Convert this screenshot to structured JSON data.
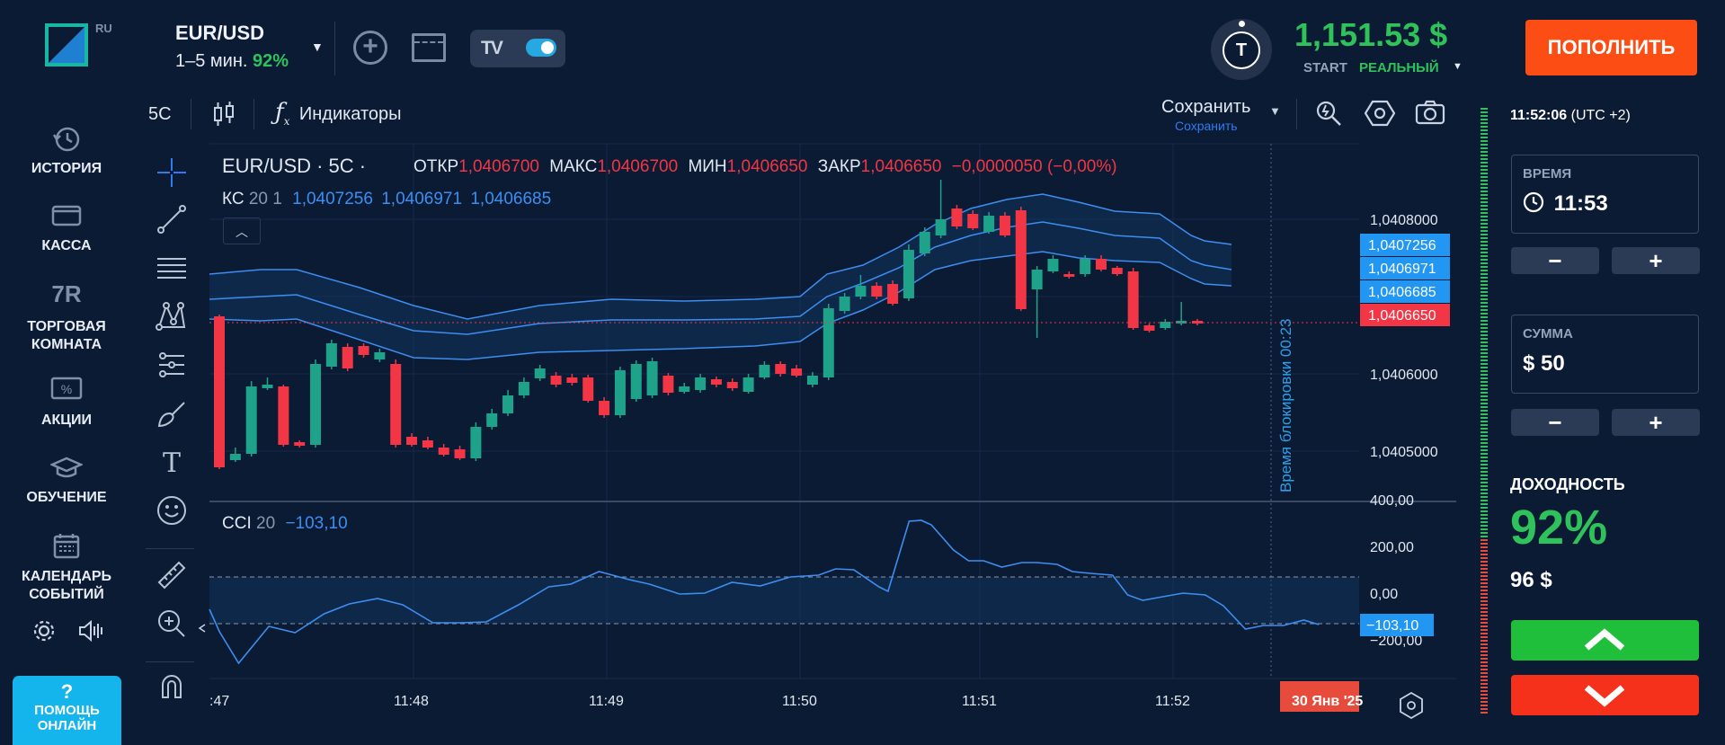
{
  "logo": {
    "ru": "RU"
  },
  "asset": {
    "name": "EUR/USD",
    "timeframe": "1–5 мин.",
    "payout": "92%"
  },
  "account": {
    "avatar_letter": "T",
    "balance": "1,151.53 $",
    "type_start": "START",
    "type_real": "РЕАЛЬНЫЙ"
  },
  "deposit_label": "ПОПОЛНИТЬ",
  "sidebar": {
    "items": [
      {
        "label": "ИСТОРИЯ",
        "icon": "history-icon"
      },
      {
        "label": "КАССА",
        "icon": "wallet-icon"
      },
      {
        "label": "ТОРГОВАЯ КОМНАТА",
        "icon": "trading-room-icon",
        "icon_text": "7R"
      },
      {
        "label": "АКЦИИ",
        "icon": "promo-icon"
      },
      {
        "label": "ОБУЧЕНИЕ",
        "icon": "education-icon"
      },
      {
        "label": "КАЛЕНДАРЬ СОБЫТИЙ",
        "icon": "calendar-icon"
      }
    ],
    "help_label": "ПОМОЩЬ ОНЛАЙН",
    "help_q": "?"
  },
  "toolbar": {
    "interval": "5C",
    "indicators_label": "Индикаторы",
    "save_label": "Сохранить",
    "save_sub": "Сохранить"
  },
  "legend": {
    "title": "EUR/USD · 5C ·",
    "open_lbl": "ОТКР",
    "open": "1,0406700",
    "high_lbl": "МАКС",
    "high": "1,0406700",
    "low_lbl": "МИН",
    "low": "1,0406650",
    "close_lbl": "ЗАКР",
    "close": "1,0406650",
    "change": "−0,0000050 (−0,00%)",
    "kc_name": "КС",
    "kc_params": "20 1",
    "kc_upper": "1,0407256",
    "kc_mid": "1,0406971",
    "kc_lower": "1,0406685",
    "cci_name": "CCI",
    "cci_param": "20",
    "cci_value": "−103,10"
  },
  "chart_data": {
    "type": "candlestick",
    "price_ticks": [
      "1,0408000",
      "1,0406000",
      "1,0405000"
    ],
    "price_tags": [
      "1,0407256",
      "1,0406971",
      "1,0406685",
      "1,0406650"
    ],
    "cci_ticks": [
      "400,00",
      "200,00",
      "0,00",
      "−200,00"
    ],
    "cci_tag": "−103,10",
    "time_ticks": [
      ":47",
      "11:48",
      "11:49",
      "11:50",
      "11:51",
      "11:52"
    ],
    "date_tag": "30 Янв '25",
    "lock_text": "Время блокировки 00:23"
  },
  "right_panel": {
    "server_time": "11:52:06",
    "timezone": "(UTC +2)",
    "time_label": "ВРЕМЯ",
    "time_value": "11:53",
    "amount_label": "СУММА",
    "amount_value": "$ 50",
    "minus": "−",
    "plus": "+",
    "yield_label": "ДОХОДНОСТЬ",
    "yield_pct": "92%",
    "yield_amount": "96 $"
  },
  "colors": {
    "up": "#1ea38a",
    "down": "#f23645",
    "accent": "#2fc25b",
    "deposit": "#fb4d14"
  }
}
